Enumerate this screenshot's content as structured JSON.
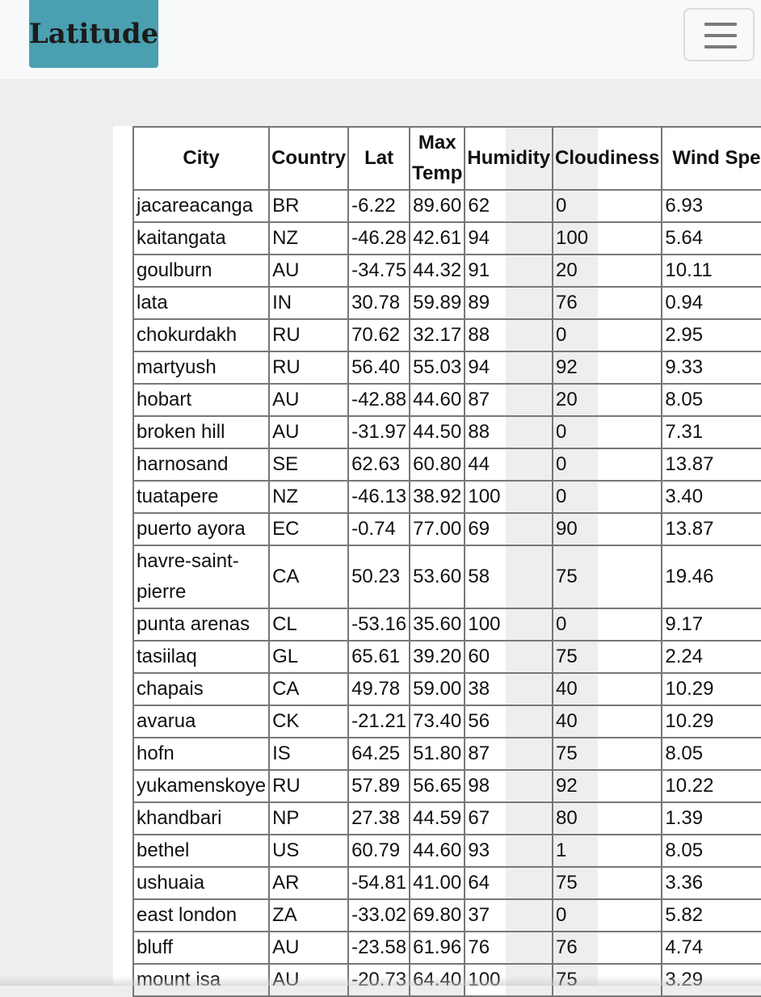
{
  "navbar": {
    "brand": "Latitude",
    "toggler_icon": "hamburger-menu-icon"
  },
  "table": {
    "columns": [
      "City",
      "Country",
      "Lat",
      "Max Temp",
      "Humidity",
      "Cloudiness",
      "Wind Speed"
    ],
    "rows": [
      [
        "jacareacanga",
        "BR",
        "-6.22",
        "89.60",
        "62",
        "0",
        "6.93"
      ],
      [
        "kaitangata",
        "NZ",
        "-46.28",
        "42.61",
        "94",
        "100",
        "5.64"
      ],
      [
        "goulburn",
        "AU",
        "-34.75",
        "44.32",
        "91",
        "20",
        "10.11"
      ],
      [
        "lata",
        "IN",
        "30.78",
        "59.89",
        "89",
        "76",
        "0.94"
      ],
      [
        "chokurdakh",
        "RU",
        "70.62",
        "32.17",
        "88",
        "0",
        "2.95"
      ],
      [
        "martyush",
        "RU",
        "56.40",
        "55.03",
        "94",
        "92",
        "9.33"
      ],
      [
        "hobart",
        "AU",
        "-42.88",
        "44.60",
        "87",
        "20",
        "8.05"
      ],
      [
        "broken hill",
        "AU",
        "-31.97",
        "44.50",
        "88",
        "0",
        "7.31"
      ],
      [
        "harnosand",
        "SE",
        "62.63",
        "60.80",
        "44",
        "0",
        "13.87"
      ],
      [
        "tuatapere",
        "NZ",
        "-46.13",
        "38.92",
        "100",
        "0",
        "3.40"
      ],
      [
        "puerto ayora",
        "EC",
        "-0.74",
        "77.00",
        "69",
        "90",
        "13.87"
      ],
      [
        "havre-saint-pierre",
        "CA",
        "50.23",
        "53.60",
        "58",
        "75",
        "19.46"
      ],
      [
        "punta arenas",
        "CL",
        "-53.16",
        "35.60",
        "100",
        "0",
        "9.17"
      ],
      [
        "tasiilaq",
        "GL",
        "65.61",
        "39.20",
        "60",
        "75",
        "2.24"
      ],
      [
        "chapais",
        "CA",
        "49.78",
        "59.00",
        "38",
        "40",
        "10.29"
      ],
      [
        "avarua",
        "CK",
        "-21.21",
        "73.40",
        "56",
        "40",
        "10.29"
      ],
      [
        "hofn",
        "IS",
        "64.25",
        "51.80",
        "87",
        "75",
        "8.05"
      ],
      [
        "yukamenskoye",
        "RU",
        "57.89",
        "56.65",
        "98",
        "92",
        "10.22"
      ],
      [
        "khandbari",
        "NP",
        "27.38",
        "44.59",
        "67",
        "80",
        "1.39"
      ],
      [
        "bethel",
        "US",
        "60.79",
        "44.60",
        "93",
        "1",
        "8.05"
      ],
      [
        "ushuaia",
        "AR",
        "-54.81",
        "41.00",
        "64",
        "75",
        "3.36"
      ],
      [
        "east london",
        "ZA",
        "-33.02",
        "69.80",
        "37",
        "0",
        "5.82"
      ],
      [
        "bluff",
        "AU",
        "-23.58",
        "61.96",
        "76",
        "76",
        "4.74"
      ],
      [
        "mount isa",
        "AU",
        "-20.73",
        "64.40",
        "100",
        "75",
        "3.29"
      ]
    ]
  }
}
